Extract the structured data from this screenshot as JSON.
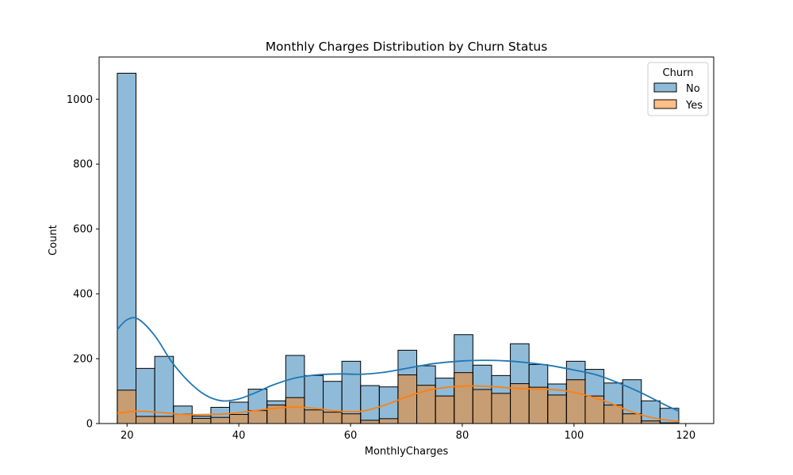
{
  "chart_data": {
    "type": "histogram",
    "title": "Monthly Charges Distribution by Churn Status",
    "xlabel": "MonthlyCharges",
    "ylabel": "Count",
    "xlim": [
      15,
      125
    ],
    "ylim": [
      0,
      1130
    ],
    "xticks": [
      20,
      40,
      60,
      80,
      100,
      120
    ],
    "yticks": [
      0,
      200,
      400,
      600,
      800,
      1000
    ],
    "bin_start": 18.25,
    "bin_width": 3.35,
    "legend": {
      "title": "Churn",
      "position": "top-right"
    },
    "series": [
      {
        "name": "No",
        "color": "#1f77b4",
        "counts": [
          1080,
          170,
          207,
          54,
          23,
          50,
          66,
          106,
          70,
          210,
          148,
          130,
          192,
          117,
          113,
          226,
          178,
          140,
          274,
          180,
          148,
          246,
          182,
          122,
          192,
          167,
          125,
          135,
          70,
          47
        ],
        "kde_points": [
          [
            18.25,
            290
          ],
          [
            20,
            320
          ],
          [
            22,
            322
          ],
          [
            25,
            270
          ],
          [
            28,
            190
          ],
          [
            31,
            130
          ],
          [
            34,
            88
          ],
          [
            37,
            70
          ],
          [
            40,
            76
          ],
          [
            43,
            95
          ],
          [
            46,
            118
          ],
          [
            50,
            140
          ],
          [
            54,
            150
          ],
          [
            58,
            153
          ],
          [
            62,
            152
          ],
          [
            66,
            158
          ],
          [
            70,
            170
          ],
          [
            75,
            185
          ],
          [
            80,
            193
          ],
          [
            84,
            195
          ],
          [
            88,
            193
          ],
          [
            92,
            187
          ],
          [
            96,
            178
          ],
          [
            100,
            165
          ],
          [
            104,
            150
          ],
          [
            108,
            125
          ],
          [
            112,
            95
          ],
          [
            116,
            60
          ],
          [
            118.75,
            38
          ]
        ]
      },
      {
        "name": "Yes",
        "color": "#ff7f0e",
        "counts": [
          103,
          22,
          22,
          29,
          16,
          19,
          28,
          40,
          57,
          80,
          42,
          35,
          30,
          10,
          15,
          150,
          118,
          85,
          157,
          105,
          93,
          123,
          112,
          88,
          135,
          85,
          57,
          30,
          8,
          2
        ],
        "kde_points": [
          [
            18.25,
            32
          ],
          [
            22,
            38
          ],
          [
            26,
            34
          ],
          [
            30,
            28
          ],
          [
            34,
            28
          ],
          [
            38,
            30
          ],
          [
            42,
            38
          ],
          [
            46,
            46
          ],
          [
            50,
            51
          ],
          [
            54,
            46
          ],
          [
            58,
            38
          ],
          [
            62,
            38
          ],
          [
            66,
            56
          ],
          [
            70,
            82
          ],
          [
            74,
            103
          ],
          [
            78,
            113
          ],
          [
            82,
            116
          ],
          [
            86,
            113
          ],
          [
            90,
            108
          ],
          [
            94,
            106
          ],
          [
            98,
            102
          ],
          [
            102,
            88
          ],
          [
            106,
            66
          ],
          [
            110,
            38
          ],
          [
            114,
            18
          ],
          [
            118.75,
            6
          ]
        ]
      }
    ]
  }
}
